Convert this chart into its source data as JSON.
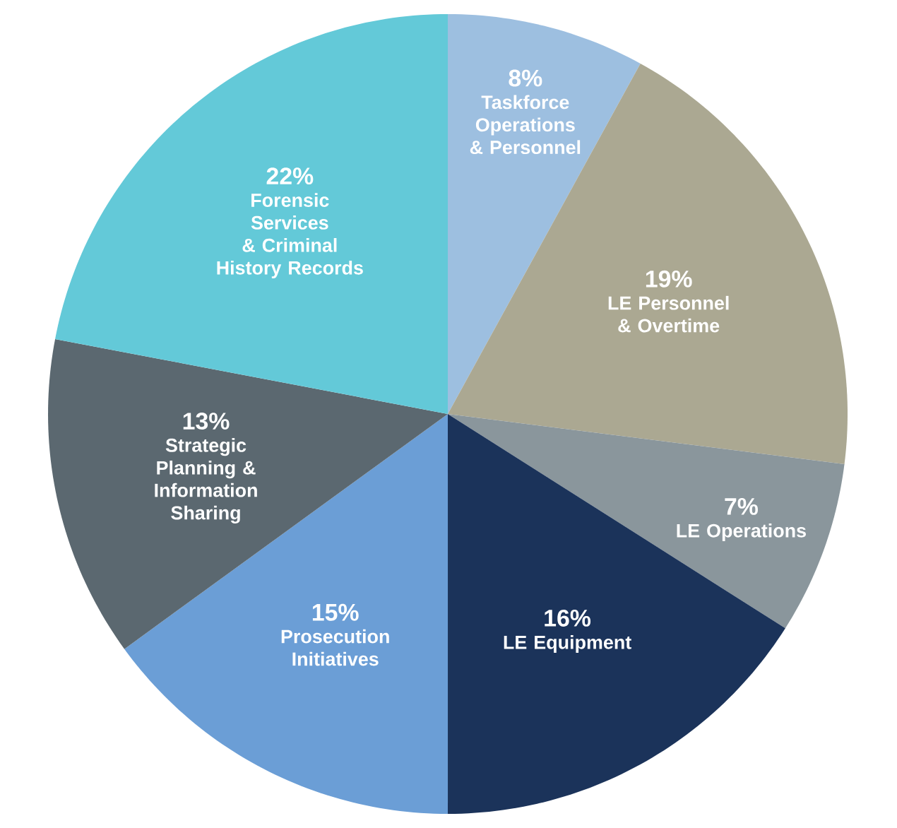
{
  "chart_data": {
    "type": "pie",
    "categories": [
      "Taskforce Operations & Personnel",
      "LE Personnel & Overtime",
      "LE Operations",
      "LE Equipment",
      "Prosecution Initiatives",
      "Strategic Planning & Information Sharing",
      "Forensic Services & Criminal History Records"
    ],
    "values": [
      8,
      19,
      7,
      16,
      15,
      13,
      22
    ],
    "value_labels": [
      "8%",
      "19%",
      "7%",
      "16%",
      "15%",
      "13%",
      "22%"
    ],
    "colors": [
      "#9dbfe0",
      "#aba892",
      "#8a969c",
      "#1b335a",
      "#6b9ed6",
      "#5b6870",
      "#63c9d8"
    ]
  }
}
